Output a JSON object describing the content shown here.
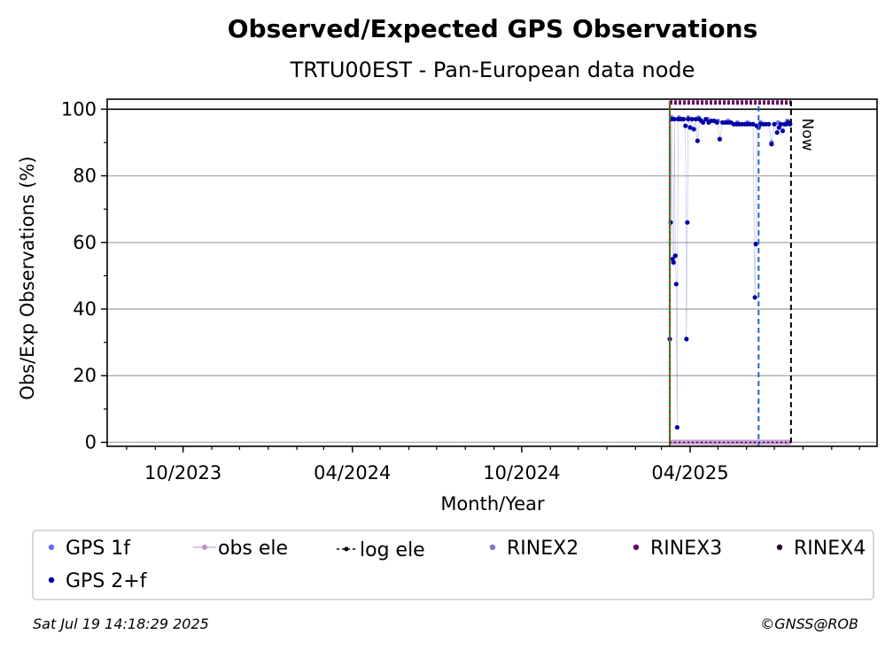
{
  "chart_data": {
    "type": "scatter",
    "title": "Observed/Expected GPS Observations",
    "subtitle": "TRTU00EST - Pan-European data node",
    "xlabel": "Month/Year",
    "ylabel": "Obs/Exp Observations (%)",
    "ylim": [
      0,
      103
    ],
    "xlim": [
      "2023-07-11",
      "2025-10-20"
    ],
    "x_ticks": [
      {
        "date": "2023-10-01",
        "label": "10/2023"
      },
      {
        "date": "2024-04-01",
        "label": "04/2024"
      },
      {
        "date": "2024-10-01",
        "label": "10/2024"
      },
      {
        "date": "2025-04-01",
        "label": "04/2025"
      }
    ],
    "y_ticks": [
      0,
      20,
      40,
      60,
      80,
      100
    ],
    "grid": "horizontal",
    "reference_line_y": 100,
    "colors": {
      "gps_1f": "#6a6af5",
      "gps_2f": "#0000a8",
      "obs_ele": "#c08ad0",
      "log_ele": "#000000",
      "rinex2": "#8078c0",
      "rinex3": "#6a0a6a",
      "rinex4": "#2a0a2a",
      "start_line": "#2a8a2a",
      "start_line_dash": "#d02020",
      "event_line": "#1a6ac8",
      "now_line": "#000000",
      "grid": "#b0b0b0"
    },
    "vertical_lines": [
      {
        "date": "2025-03-10",
        "type": "data-start"
      },
      {
        "date": "2025-06-14",
        "type": "event"
      },
      {
        "date": "2025-07-19",
        "type": "now",
        "label": "Now"
      }
    ],
    "rinex3_level": 102,
    "series": [
      {
        "name": "GPS 2+f",
        "points": [
          [
            "2025-03-10",
            31
          ],
          [
            "2025-03-11",
            66
          ],
          [
            "2025-03-12",
            97
          ],
          [
            "2025-03-13",
            55
          ],
          [
            "2025-03-14",
            54
          ],
          [
            "2025-03-15",
            97
          ],
          [
            "2025-03-16",
            56
          ],
          [
            "2025-03-17",
            47.5
          ],
          [
            "2025-03-18",
            4.5
          ],
          [
            "2025-03-19",
            97
          ],
          [
            "2025-03-21",
            97
          ],
          [
            "2025-03-23",
            97
          ],
          [
            "2025-03-25",
            97
          ],
          [
            "2025-03-27",
            95
          ],
          [
            "2025-03-28",
            31
          ],
          [
            "2025-03-29",
            66
          ],
          [
            "2025-03-30",
            97
          ],
          [
            "2025-04-01",
            94.5
          ],
          [
            "2025-04-03",
            97
          ],
          [
            "2025-04-05",
            94
          ],
          [
            "2025-04-07",
            97
          ],
          [
            "2025-04-09",
            90.5
          ],
          [
            "2025-04-11",
            97
          ],
          [
            "2025-04-13",
            96.5
          ],
          [
            "2025-04-15",
            96
          ],
          [
            "2025-04-18",
            97
          ],
          [
            "2025-04-21",
            96
          ],
          [
            "2025-04-24",
            96.5
          ],
          [
            "2025-04-27",
            96.5
          ],
          [
            "2025-04-30",
            96
          ],
          [
            "2025-05-03",
            91
          ],
          [
            "2025-05-06",
            96
          ],
          [
            "2025-05-09",
            96
          ],
          [
            "2025-05-12",
            96
          ],
          [
            "2025-05-15",
            96
          ],
          [
            "2025-05-18",
            95.5
          ],
          [
            "2025-05-21",
            95.5
          ],
          [
            "2025-05-24",
            95.5
          ],
          [
            "2025-05-27",
            95.5
          ],
          [
            "2025-05-30",
            95.5
          ],
          [
            "2025-06-02",
            95.5
          ],
          [
            "2025-06-05",
            95.5
          ],
          [
            "2025-06-08",
            95.5
          ],
          [
            "2025-06-10",
            43.5
          ],
          [
            "2025-06-11",
            59.5
          ],
          [
            "2025-06-12",
            95
          ],
          [
            "2025-06-14",
            94.5
          ],
          [
            "2025-06-16",
            95.5
          ],
          [
            "2025-06-19",
            95.5
          ],
          [
            "2025-06-22",
            95.5
          ],
          [
            "2025-06-25",
            95.5
          ],
          [
            "2025-06-28",
            89.5
          ],
          [
            "2025-07-01",
            95.5
          ],
          [
            "2025-07-04",
            93
          ],
          [
            "2025-07-06",
            94.5
          ],
          [
            "2025-07-08",
            95.5
          ],
          [
            "2025-07-10",
            93.5
          ],
          [
            "2025-07-12",
            95.5
          ],
          [
            "2025-07-14",
            95.5
          ],
          [
            "2025-07-16",
            96
          ],
          [
            "2025-07-18",
            95.5
          ]
        ]
      },
      {
        "name": "GPS 1f",
        "points": [
          [
            "2025-03-12",
            97.5
          ],
          [
            "2025-03-20",
            97.5
          ],
          [
            "2025-03-30",
            97.5
          ],
          [
            "2025-04-10",
            97.5
          ],
          [
            "2025-04-20",
            97
          ],
          [
            "2025-05-01",
            96.5
          ],
          [
            "2025-05-12",
            96.5
          ],
          [
            "2025-05-22",
            96
          ],
          [
            "2025-06-02",
            96
          ],
          [
            "2025-06-16",
            96
          ],
          [
            "2025-06-28",
            90
          ],
          [
            "2025-07-05",
            96
          ],
          [
            "2025-07-15",
            96.5
          ]
        ]
      }
    ],
    "legend": {
      "placement": "bottom",
      "items": [
        {
          "label": "GPS 1f",
          "marker": "dot",
          "color_key": "gps_1f"
        },
        {
          "label": "obs ele",
          "marker": "line-dot",
          "color_key": "obs_ele"
        },
        {
          "label": "log ele",
          "marker": "dashed-dot",
          "color_key": "log_ele"
        },
        {
          "label": "RINEX2",
          "marker": "dot",
          "color_key": "rinex2"
        },
        {
          "label": "RINEX3",
          "marker": "dot",
          "color_key": "rinex3"
        },
        {
          "label": "RINEX4",
          "marker": "dot",
          "color_key": "rinex4"
        },
        {
          "label": "GPS 2+f",
          "marker": "dot",
          "color_key": "gps_2f"
        }
      ]
    }
  },
  "footer": {
    "timestamp": "Sat Jul 19 14:18:29 2025",
    "credit": "©GNSS@ROB"
  }
}
